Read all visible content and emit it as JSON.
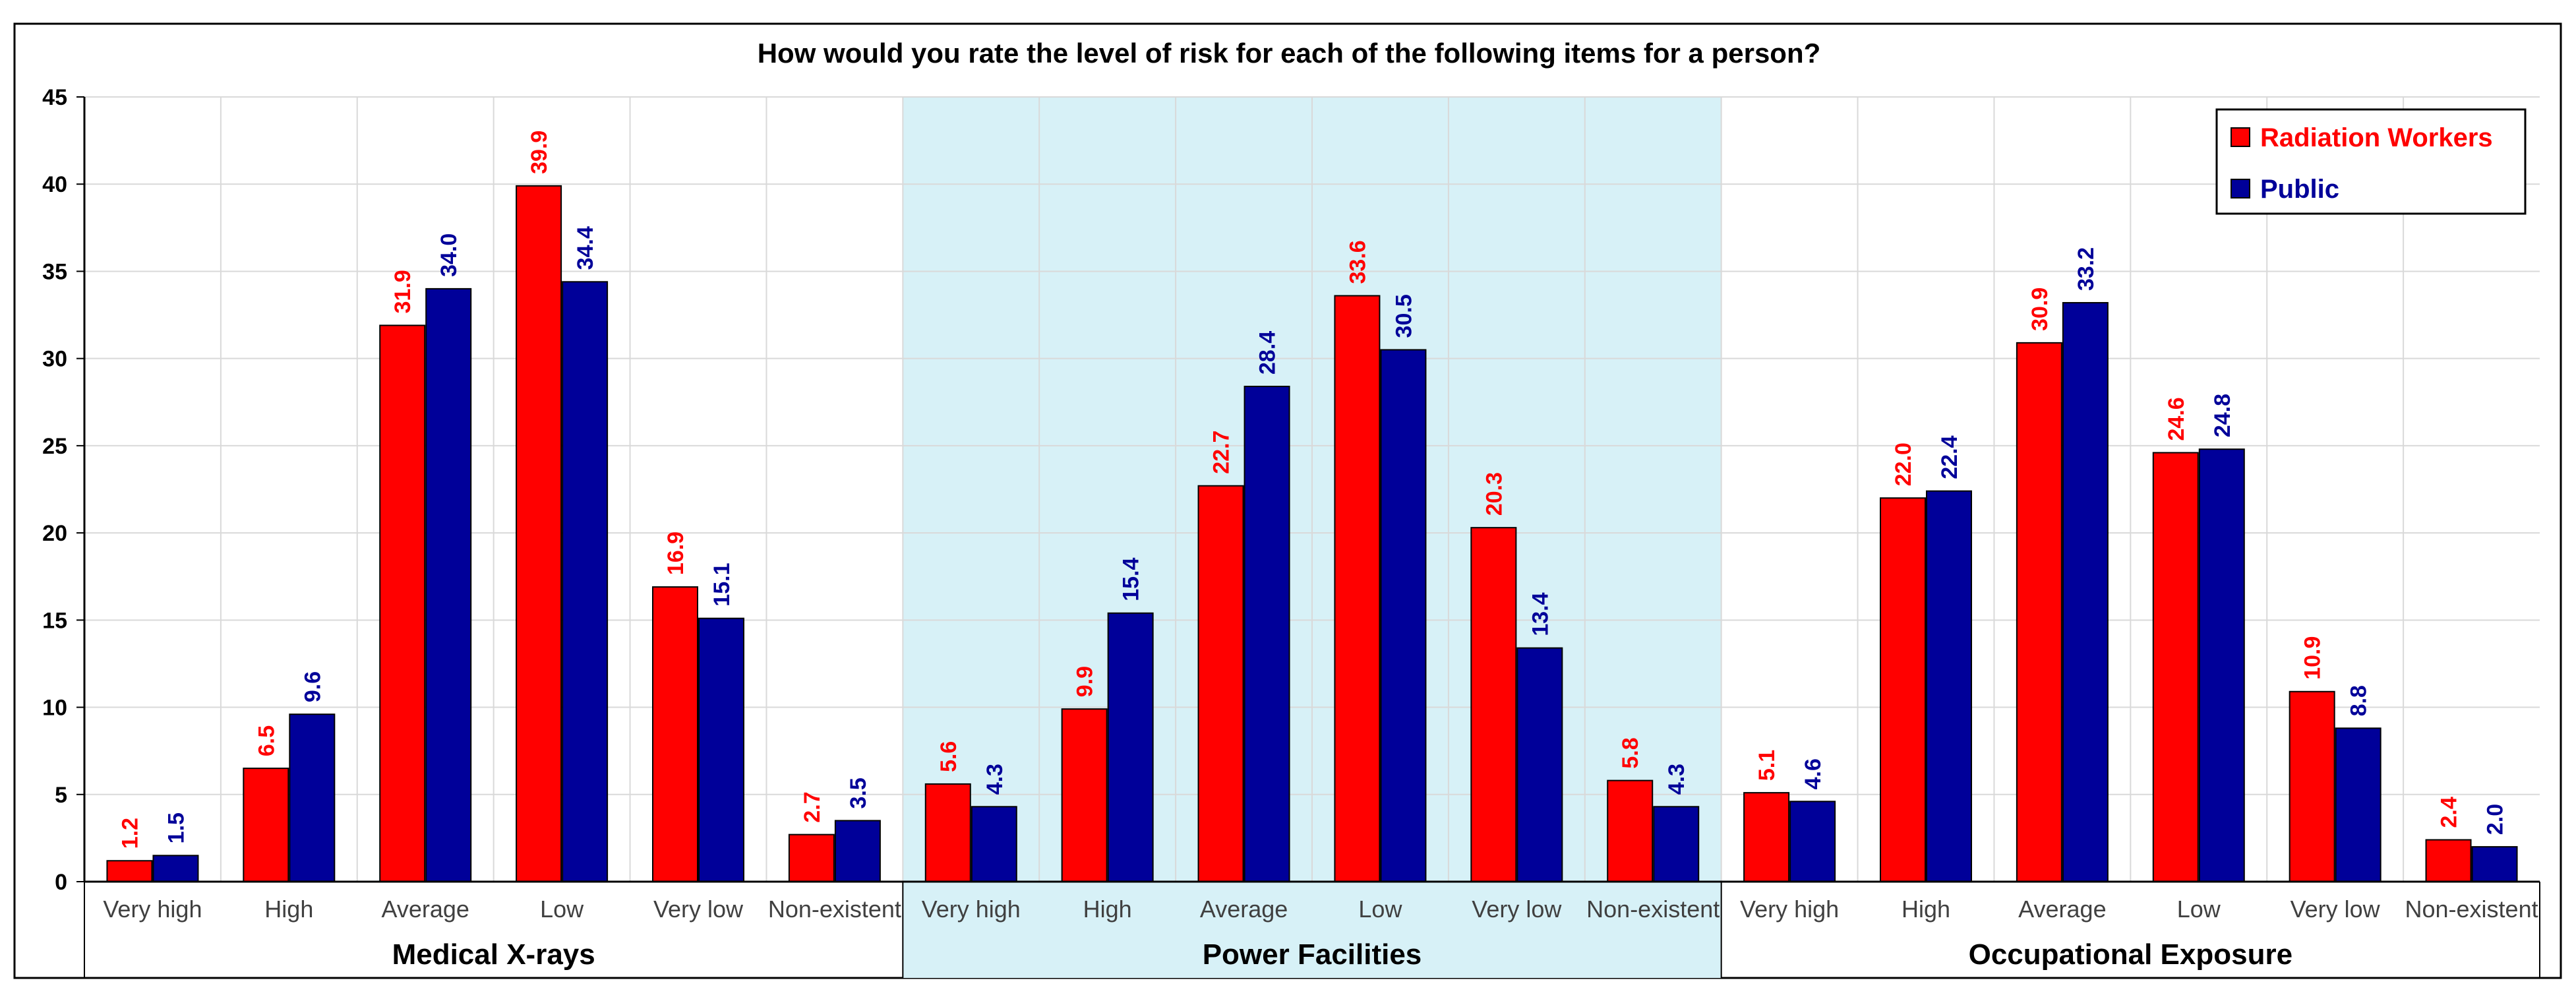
{
  "chart_data": {
    "type": "bar",
    "title": "How would you rate the level of risk for each of the following items for a person?",
    "ylim": [
      0,
      45
    ],
    "yticks": [
      "0",
      "5",
      "10",
      "15",
      "20",
      "25",
      "30",
      "35",
      "40",
      "45"
    ],
    "grid": true,
    "legend_position": "top-right",
    "groups": [
      "Medical X-rays",
      "Power Facilities",
      "Occupational Exposure"
    ],
    "highlighted_group": "Power Facilities",
    "categories": [
      "Very high",
      "High",
      "Average",
      "Low",
      "Very low",
      "Non-existent",
      "Very high",
      "High",
      "Average",
      "Low",
      "Very low",
      "Non-existent",
      "Very high",
      "High",
      "Average",
      "Low",
      "Very low",
      "Non-existent"
    ],
    "series": [
      {
        "name": "Radiation Workers",
        "color": "#ff0000",
        "values": [
          1.2,
          6.5,
          31.9,
          39.9,
          16.9,
          2.7,
          5.6,
          9.9,
          22.7,
          33.6,
          20.3,
          5.8,
          5.1,
          22.0,
          30.9,
          24.6,
          10.9,
          2.4
        ],
        "labels": [
          "1.2",
          "6.5",
          "31.9",
          "39.9",
          "16.9",
          "2.7",
          "5.6",
          "9.9",
          "22.7",
          "33.6",
          "20.3",
          "5.8",
          "5.1",
          "22.0",
          "30.9",
          "24.6",
          "10.9",
          "2.4"
        ]
      },
      {
        "name": "Public",
        "color": "#000099",
        "values": [
          1.5,
          9.6,
          34.0,
          34.4,
          15.1,
          3.5,
          4.3,
          15.4,
          28.4,
          30.5,
          13.4,
          4.3,
          4.6,
          22.4,
          33.2,
          24.8,
          8.8,
          2.0
        ],
        "labels": [
          "1.5",
          "9.6",
          "34.0",
          "34.4",
          "15.1",
          "3.5",
          "4.3",
          "15.4",
          "28.4",
          "30.5",
          "13.4",
          "4.3",
          "4.6",
          "22.4",
          "33.2",
          "24.8",
          "8.8",
          "2.0"
        ]
      }
    ],
    "highlight_color": "#d7f1f7"
  }
}
